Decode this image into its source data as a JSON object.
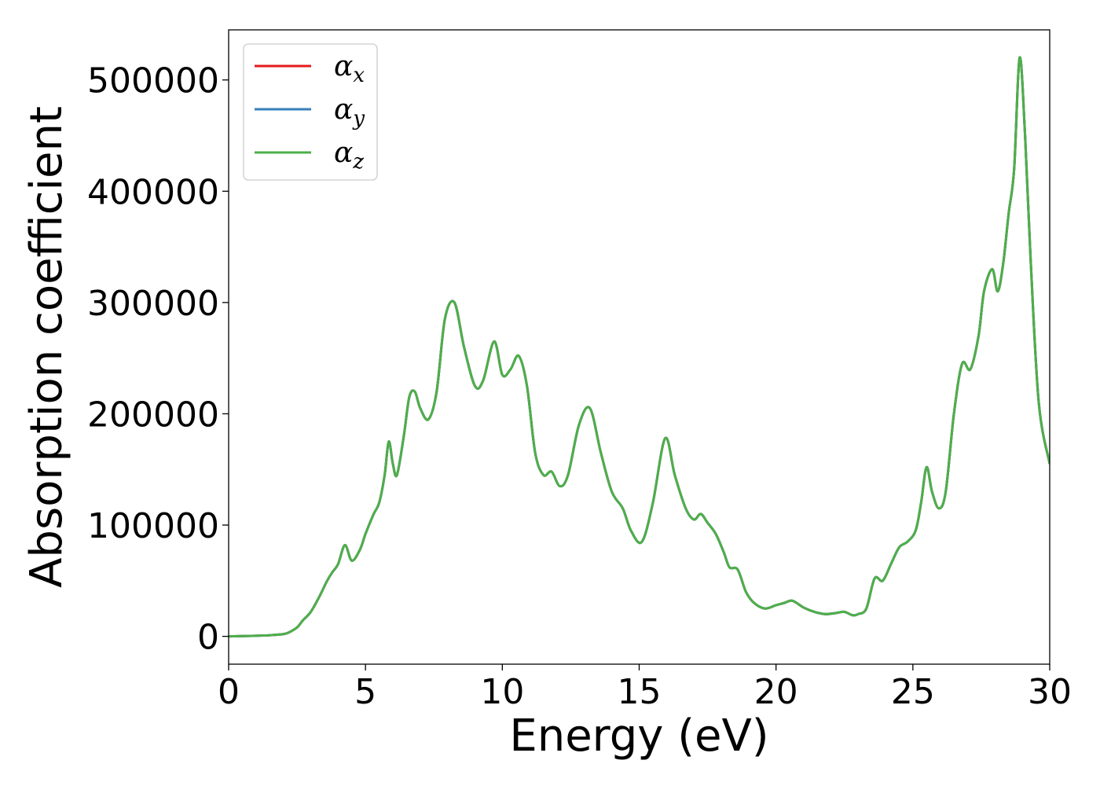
{
  "chart_data": {
    "type": "line",
    "title": "",
    "xlabel": "Energy (eV)",
    "ylabel": "Absorption coefficient",
    "xlim": [
      0,
      30
    ],
    "ylim": [
      -25000,
      545000
    ],
    "xticks": [
      0,
      5,
      10,
      15,
      20,
      25,
      30
    ],
    "yticks": [
      0,
      100000,
      200000,
      300000,
      400000,
      500000
    ],
    "grid": false,
    "legend": "top-left",
    "x": [
      0,
      1,
      1.5,
      2,
      2.2,
      2.5,
      2.7,
      3,
      3.3,
      3.6,
      3.8,
      4,
      4.25,
      4.5,
      4.8,
      5,
      5.3,
      5.5,
      5.7,
      5.85,
      6,
      6.15,
      6.4,
      6.6,
      6.8,
      7,
      7.3,
      7.6,
      7.9,
      8.25,
      8.6,
      9.0,
      9.3,
      9.7,
      10.0,
      10.3,
      10.6,
      10.9,
      11.2,
      11.5,
      11.8,
      12.1,
      12.4,
      12.8,
      13.2,
      13.6,
      14.0,
      14.4,
      14.7,
      15.1,
      15.5,
      15.95,
      16.3,
      16.7,
      17.0,
      17.25,
      17.5,
      17.8,
      18.1,
      18.3,
      18.6,
      18.9,
      19.2,
      19.6,
      20.0,
      20.3,
      20.6,
      21.0,
      21.4,
      21.8,
      22.2,
      22.5,
      22.8,
      23.0,
      23.3,
      23.6,
      23.9,
      24.2,
      24.5,
      24.8,
      25.1,
      25.3,
      25.5,
      25.7,
      25.95,
      26.2,
      26.5,
      26.8,
      27.1,
      27.4,
      27.6,
      27.9,
      28.1,
      28.3,
      28.5,
      28.7,
      28.9,
      29.1,
      29.3,
      29.6,
      30.0
    ],
    "series": [
      {
        "name": "α_x",
        "color": "#e41a1c",
        "values": [
          0,
          500,
          1000,
          2000,
          3500,
          8000,
          14000,
          22000,
          35000,
          50000,
          58000,
          65000,
          82000,
          68000,
          78000,
          92000,
          110000,
          120000,
          145000,
          175000,
          155000,
          145000,
          180000,
          215000,
          220000,
          205000,
          195000,
          220000,
          285000,
          300000,
          260000,
          225000,
          230000,
          265000,
          235000,
          240000,
          252000,
          225000,
          165000,
          145000,
          148000,
          135000,
          145000,
          190000,
          205000,
          165000,
          130000,
          115000,
          95000,
          85000,
          120000,
          178000,
          145000,
          115000,
          105000,
          110000,
          102000,
          92000,
          75000,
          62000,
          60000,
          40000,
          30000,
          25000,
          28000,
          30000,
          32000,
          26000,
          22000,
          20000,
          21000,
          22000,
          19000,
          20000,
          25000,
          52000,
          50000,
          65000,
          80000,
          85000,
          95000,
          120000,
          152000,
          130000,
          115000,
          130000,
          200000,
          245000,
          240000,
          270000,
          310000,
          330000,
          310000,
          335000,
          380000,
          420000,
          520000,
          450000,
          340000,
          210000,
          155000
        ]
      },
      {
        "name": "α_y",
        "color": "#377eb8",
        "values": [
          0,
          500,
          1000,
          2000,
          3500,
          8000,
          14000,
          22000,
          35000,
          50000,
          58000,
          65000,
          82000,
          68000,
          78000,
          92000,
          110000,
          120000,
          145000,
          175000,
          155000,
          145000,
          180000,
          215000,
          220000,
          205000,
          195000,
          220000,
          285000,
          300000,
          260000,
          225000,
          230000,
          265000,
          235000,
          240000,
          252000,
          225000,
          165000,
          145000,
          148000,
          135000,
          145000,
          190000,
          205000,
          165000,
          130000,
          115000,
          95000,
          85000,
          120000,
          178000,
          145000,
          115000,
          105000,
          110000,
          102000,
          92000,
          75000,
          62000,
          60000,
          40000,
          30000,
          25000,
          28000,
          30000,
          32000,
          26000,
          22000,
          20000,
          21000,
          22000,
          19000,
          20000,
          25000,
          52000,
          50000,
          65000,
          80000,
          85000,
          95000,
          120000,
          152000,
          130000,
          115000,
          130000,
          200000,
          245000,
          240000,
          270000,
          310000,
          330000,
          310000,
          335000,
          380000,
          420000,
          520000,
          450000,
          340000,
          210000,
          155000
        ]
      },
      {
        "name": "α_z",
        "color": "#4daf4a",
        "values": [
          0,
          500,
          1000,
          2000,
          3500,
          8000,
          14000,
          22000,
          35000,
          50000,
          58000,
          65000,
          82000,
          68000,
          78000,
          92000,
          110000,
          120000,
          145000,
          175000,
          155000,
          145000,
          180000,
          215000,
          220000,
          205000,
          195000,
          220000,
          285000,
          300000,
          260000,
          225000,
          230000,
          265000,
          235000,
          240000,
          252000,
          225000,
          165000,
          145000,
          148000,
          135000,
          145000,
          190000,
          205000,
          165000,
          130000,
          115000,
          95000,
          85000,
          120000,
          178000,
          145000,
          115000,
          105000,
          110000,
          102000,
          92000,
          75000,
          62000,
          60000,
          40000,
          30000,
          25000,
          28000,
          30000,
          32000,
          26000,
          22000,
          20000,
          21000,
          22000,
          19000,
          20000,
          25000,
          52000,
          50000,
          65000,
          80000,
          85000,
          95000,
          120000,
          152000,
          130000,
          115000,
          130000,
          200000,
          245000,
          240000,
          270000,
          310000,
          330000,
          310000,
          335000,
          380000,
          420000,
          520000,
          450000,
          340000,
          210000,
          155000
        ]
      }
    ],
    "legend_entries": [
      {
        "symbol": "α",
        "sub": "x"
      },
      {
        "symbol": "α",
        "sub": "y"
      },
      {
        "symbol": "α",
        "sub": "z"
      }
    ]
  }
}
